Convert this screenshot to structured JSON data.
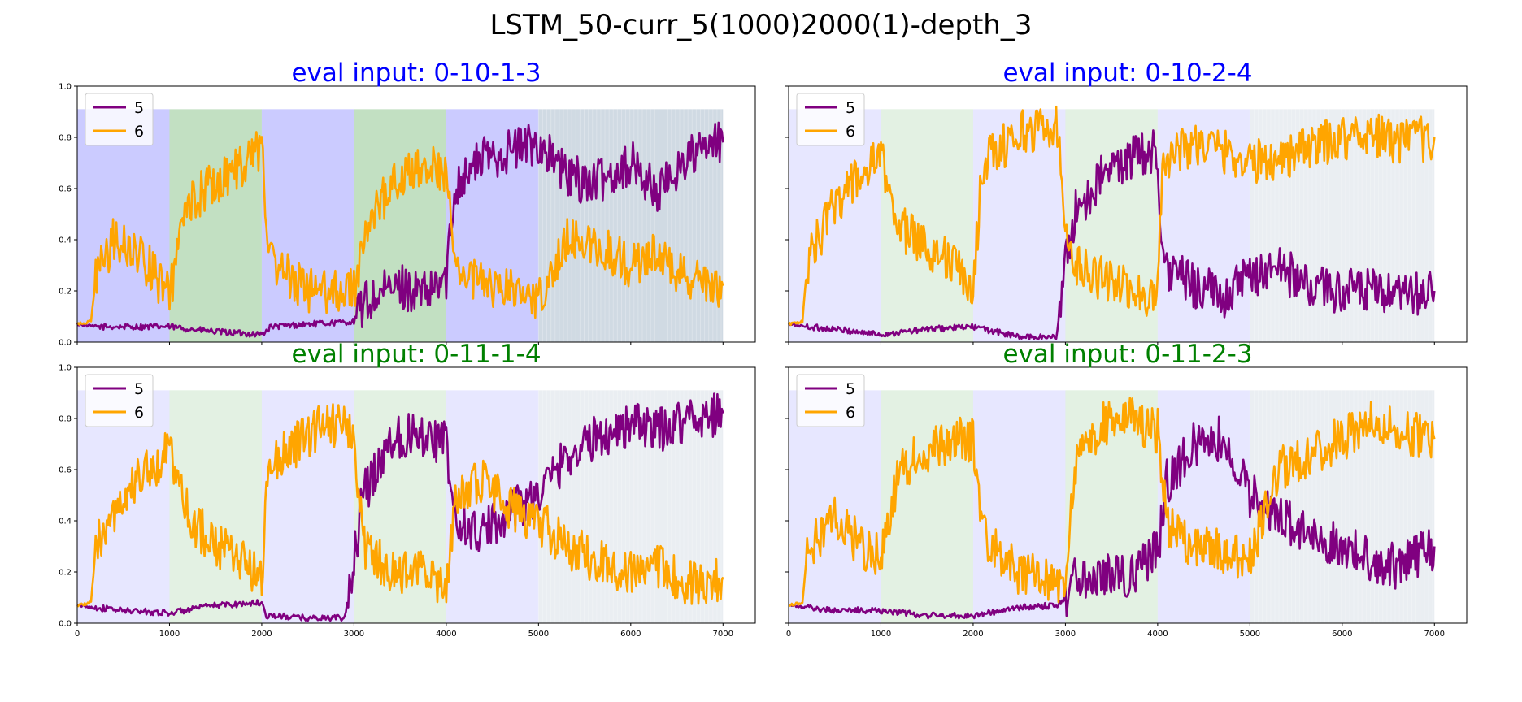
{
  "suptitle": "LSTM_50-curr_5(1000)2000(1)-depth_3",
  "colors": {
    "series_5": "#800080",
    "series_6": "#ffa500",
    "title_blue": "#0000ff",
    "title_green": "#008000",
    "bg_blue": "#a0a0ff",
    "bg_green": "#8fc78f",
    "bg_grey": "#aabccc"
  },
  "chart_data": [
    {
      "type": "line",
      "title": "eval input: 0-10-1-3",
      "title_color": "blue",
      "xlim": [
        0,
        7350
      ],
      "ylim": [
        0,
        1.0
      ],
      "xticks": [
        0,
        1000,
        2000,
        3000,
        4000,
        5000,
        6000,
        7000
      ],
      "yticks": [
        0.0,
        0.2,
        0.4,
        0.6,
        0.8,
        1.0
      ],
      "show_yticklabels": true,
      "show_xticklabels": false,
      "legend": "top-left",
      "shading_strength": "strong",
      "series": [
        {
          "name": "5",
          "color": "series_5",
          "x": [
            0,
            200,
            500,
            1000,
            1500,
            2000,
            2100,
            2500,
            3000,
            3100,
            3500,
            3800,
            4000,
            4100,
            4400,
            4700,
            5000,
            5300,
            5600,
            6000,
            6300,
            6600,
            7000
          ],
          "y": [
            0.07,
            0.06,
            0.06,
            0.06,
            0.04,
            0.03,
            0.06,
            0.07,
            0.08,
            0.15,
            0.22,
            0.18,
            0.25,
            0.62,
            0.72,
            0.75,
            0.78,
            0.65,
            0.62,
            0.7,
            0.58,
            0.72,
            0.78
          ]
        },
        {
          "name": "6",
          "color": "series_6",
          "x": [
            0,
            150,
            200,
            400,
            700,
            1000,
            1200,
            1500,
            1800,
            2000,
            2100,
            2500,
            3000,
            3100,
            3400,
            3800,
            4000,
            4100,
            4400,
            4700,
            5000,
            5300,
            5600,
            6000,
            6300,
            6600,
            7000
          ],
          "y": [
            0.07,
            0.08,
            0.25,
            0.4,
            0.33,
            0.18,
            0.55,
            0.62,
            0.7,
            0.75,
            0.3,
            0.2,
            0.2,
            0.4,
            0.62,
            0.7,
            0.65,
            0.3,
            0.22,
            0.2,
            0.18,
            0.4,
            0.38,
            0.3,
            0.35,
            0.25,
            0.22
          ]
        }
      ]
    },
    {
      "type": "line",
      "title": "eval input: 0-10-2-4",
      "title_color": "blue",
      "xlim": [
        0,
        7350
      ],
      "ylim": [
        0,
        1.0
      ],
      "xticks": [
        0,
        1000,
        2000,
        3000,
        4000,
        5000,
        6000,
        7000
      ],
      "yticks": [
        0.0,
        0.2,
        0.4,
        0.6,
        0.8,
        1.0
      ],
      "show_yticklabels": false,
      "show_xticklabels": false,
      "legend": "top-left",
      "shading_strength": "light",
      "series": [
        {
          "name": "5",
          "color": "series_5",
          "x": [
            0,
            200,
            500,
            1000,
            1500,
            2000,
            2500,
            2900,
            3000,
            3100,
            3400,
            3700,
            4000,
            4050,
            4400,
            4700,
            5000,
            5300,
            5600,
            6000,
            6300,
            6600,
            7000
          ],
          "y": [
            0.07,
            0.06,
            0.05,
            0.03,
            0.05,
            0.06,
            0.02,
            0.02,
            0.3,
            0.5,
            0.65,
            0.72,
            0.75,
            0.3,
            0.22,
            0.18,
            0.25,
            0.3,
            0.22,
            0.2,
            0.2,
            0.17,
            0.2
          ]
        },
        {
          "name": "6",
          "color": "series_6",
          "x": [
            0,
            150,
            200,
            500,
            800,
            1000,
            1200,
            1500,
            1800,
            2000,
            2100,
            2500,
            2900,
            3000,
            3100,
            3400,
            3700,
            4000,
            4050,
            4400,
            4700,
            5000,
            5300,
            5600,
            6000,
            6300,
            6600,
            7000
          ],
          "y": [
            0.07,
            0.08,
            0.3,
            0.55,
            0.65,
            0.72,
            0.45,
            0.38,
            0.3,
            0.2,
            0.7,
            0.82,
            0.85,
            0.5,
            0.3,
            0.25,
            0.2,
            0.18,
            0.72,
            0.78,
            0.75,
            0.7,
            0.72,
            0.75,
            0.8,
            0.82,
            0.78,
            0.8
          ]
        }
      ]
    },
    {
      "type": "line",
      "title": "eval input: 0-11-1-4",
      "title_color": "green",
      "xlim": [
        0,
        7350
      ],
      "ylim": [
        0,
        1.0
      ],
      "xticks": [
        0,
        1000,
        2000,
        3000,
        4000,
        5000,
        6000,
        7000
      ],
      "yticks": [
        0.0,
        0.2,
        0.4,
        0.6,
        0.8,
        1.0
      ],
      "show_yticklabels": true,
      "show_xticklabels": true,
      "legend": "top-left",
      "shading_strength": "light",
      "series": [
        {
          "name": "5",
          "color": "series_5",
          "x": [
            0,
            200,
            500,
            1000,
            1500,
            2000,
            2050,
            2500,
            2900,
            3000,
            3100,
            3400,
            3700,
            4000,
            4100,
            4400,
            4700,
            5000,
            5300,
            5600,
            6000,
            6300,
            6600,
            7000
          ],
          "y": [
            0.07,
            0.06,
            0.05,
            0.04,
            0.07,
            0.08,
            0.03,
            0.02,
            0.02,
            0.25,
            0.5,
            0.72,
            0.75,
            0.7,
            0.38,
            0.35,
            0.45,
            0.5,
            0.65,
            0.72,
            0.78,
            0.75,
            0.8,
            0.82
          ]
        },
        {
          "name": "6",
          "color": "series_6",
          "x": [
            0,
            150,
            200,
            500,
            800,
            1000,
            1200,
            1500,
            1800,
            2000,
            2050,
            2300,
            2700,
            3000,
            3100,
            3400,
            3700,
            4000,
            4100,
            4400,
            4700,
            5000,
            5300,
            5600,
            6000,
            6300,
            6600,
            7000
          ],
          "y": [
            0.07,
            0.08,
            0.3,
            0.5,
            0.6,
            0.68,
            0.42,
            0.3,
            0.25,
            0.15,
            0.6,
            0.68,
            0.78,
            0.75,
            0.3,
            0.2,
            0.2,
            0.15,
            0.5,
            0.55,
            0.45,
            0.4,
            0.3,
            0.25,
            0.2,
            0.22,
            0.15,
            0.18
          ]
        }
      ]
    },
    {
      "type": "line",
      "title": "eval input: 0-11-2-3",
      "title_color": "green",
      "xlim": [
        0,
        7350
      ],
      "ylim": [
        0,
        1.0
      ],
      "xticks": [
        0,
        1000,
        2000,
        3000,
        4000,
        5000,
        6000,
        7000
      ],
      "yticks": [
        0.0,
        0.2,
        0.4,
        0.6,
        0.8,
        1.0
      ],
      "show_yticklabels": false,
      "show_xticklabels": true,
      "legend": "top-left",
      "shading_strength": "light",
      "series": [
        {
          "name": "5",
          "color": "series_5",
          "x": [
            0,
            200,
            500,
            1000,
            1500,
            2000,
            2500,
            2900,
            3000,
            3100,
            3400,
            3700,
            4000,
            4100,
            4400,
            4700,
            5000,
            5300,
            5600,
            6000,
            6300,
            6600,
            7000
          ],
          "y": [
            0.07,
            0.06,
            0.05,
            0.05,
            0.03,
            0.03,
            0.06,
            0.07,
            0.1,
            0.18,
            0.2,
            0.18,
            0.28,
            0.55,
            0.7,
            0.72,
            0.5,
            0.42,
            0.35,
            0.3,
            0.25,
            0.22,
            0.3
          ]
        },
        {
          "name": "6",
          "color": "series_6",
          "x": [
            0,
            150,
            200,
            500,
            800,
            1000,
            1200,
            1500,
            1800,
            2000,
            2100,
            2500,
            2900,
            3000,
            3100,
            3400,
            3700,
            4000,
            4100,
            4400,
            4700,
            5000,
            5300,
            5600,
            6000,
            6300,
            6600,
            7000
          ],
          "y": [
            0.07,
            0.08,
            0.28,
            0.4,
            0.3,
            0.25,
            0.6,
            0.68,
            0.72,
            0.72,
            0.35,
            0.2,
            0.15,
            0.15,
            0.6,
            0.78,
            0.8,
            0.75,
            0.38,
            0.3,
            0.28,
            0.25,
            0.6,
            0.65,
            0.72,
            0.78,
            0.75,
            0.72
          ]
        }
      ]
    }
  ]
}
